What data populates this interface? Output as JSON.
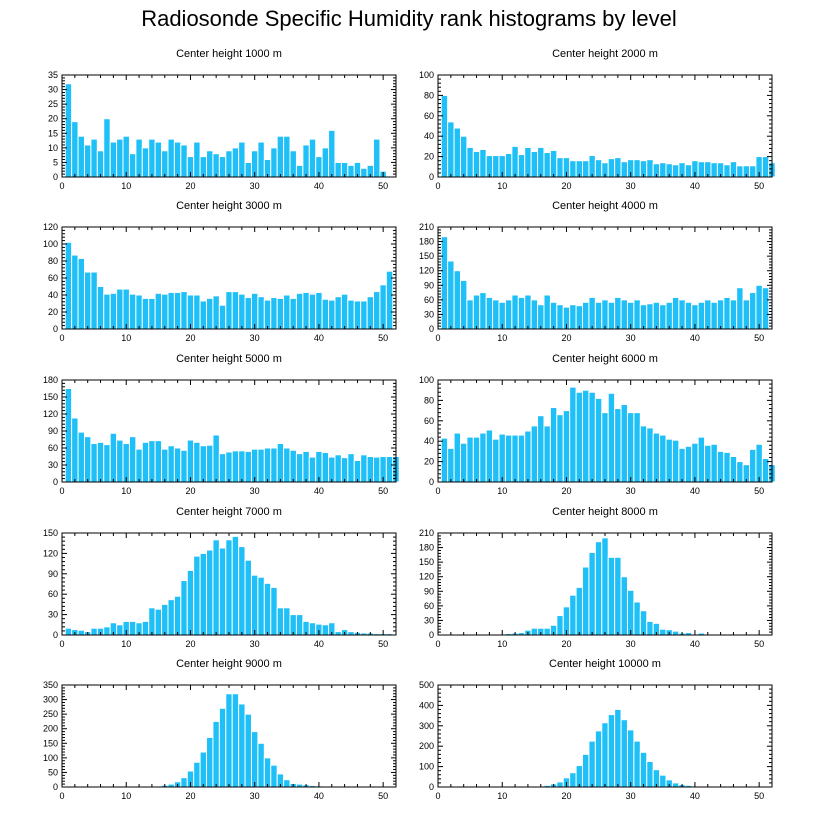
{
  "title": "Radiosonde Specific Humidity rank histograms by level",
  "colors": {
    "bar": "#1ec0f7",
    "bar_edge": "#ffffff",
    "axis": "#000000"
  },
  "chart_data": [
    {
      "type": "bar",
      "title": "Center height 1000 m",
      "xlabel": "",
      "ylabel": "",
      "xlim": [
        0,
        52
      ],
      "xticks": [
        0,
        10,
        20,
        30,
        40,
        50
      ],
      "ylim": [
        0,
        35
      ],
      "yticks": [
        0,
        5,
        10,
        15,
        20,
        25,
        30,
        35
      ],
      "values": [
        32,
        19,
        14,
        11,
        13,
        9,
        20,
        12,
        13,
        14,
        8,
        13,
        10,
        13,
        12,
        9,
        13,
        12,
        11,
        7,
        12,
        7,
        9,
        8,
        7,
        9,
        10,
        12,
        5,
        9,
        12,
        6,
        10,
        14,
        14,
        9,
        4,
        11,
        13,
        7,
        10,
        16,
        5,
        5,
        4,
        5,
        3,
        4,
        13,
        2
      ]
    },
    {
      "type": "bar",
      "title": "Center height 2000 m",
      "xlabel": "",
      "ylabel": "",
      "xlim": [
        0,
        52
      ],
      "xticks": [
        0,
        10,
        20,
        30,
        40,
        50
      ],
      "ylim": [
        0,
        100
      ],
      "yticks": [
        0,
        20,
        40,
        60,
        80,
        100
      ],
      "values": [
        80,
        54,
        48,
        40,
        29,
        25,
        27,
        21,
        21,
        21,
        23,
        30,
        22,
        29,
        25,
        29,
        24,
        26,
        19,
        19,
        16,
        16,
        16,
        21,
        17,
        14,
        18,
        19,
        15,
        17,
        17,
        16,
        17,
        13,
        14,
        13,
        12,
        14,
        12,
        16,
        15,
        15,
        14,
        14,
        12,
        15,
        11,
        11,
        11,
        20,
        20,
        14
      ]
    },
    {
      "type": "bar",
      "title": "Center height 3000 m",
      "xlabel": "",
      "ylabel": "",
      "xlim": [
        0,
        52
      ],
      "xticks": [
        0,
        10,
        20,
        30,
        40,
        50
      ],
      "ylim": [
        0,
        120
      ],
      "yticks": [
        0,
        20,
        40,
        60,
        80,
        100,
        120
      ],
      "values": [
        102,
        87,
        83,
        67,
        67,
        50,
        41,
        42,
        47,
        47,
        41,
        40,
        36,
        36,
        42,
        41,
        43,
        43,
        44,
        40,
        40,
        33,
        36,
        39,
        28,
        44,
        44,
        41,
        37,
        42,
        38,
        34,
        37,
        36,
        40,
        36,
        42,
        43,
        41,
        43,
        35,
        34,
        38,
        41,
        34,
        33,
        33,
        38,
        44,
        52,
        68
      ]
    },
    {
      "type": "bar",
      "title": "Center height 4000 m",
      "xlabel": "",
      "ylabel": "",
      "xlim": [
        0,
        52
      ],
      "xticks": [
        0,
        10,
        20,
        30,
        40,
        50
      ],
      "ylim": [
        0,
        210
      ],
      "yticks": [
        0,
        30,
        60,
        90,
        120,
        150,
        180,
        210
      ],
      "values": [
        190,
        140,
        120,
        100,
        60,
        70,
        75,
        65,
        60,
        55,
        60,
        70,
        65,
        70,
        60,
        50,
        70,
        55,
        50,
        45,
        50,
        48,
        55,
        65,
        55,
        60,
        55,
        65,
        60,
        55,
        60,
        50,
        52,
        55,
        50,
        55,
        65,
        60,
        55,
        50,
        55,
        60,
        55,
        60,
        65,
        60,
        85,
        60,
        75,
        90,
        85
      ]
    },
    {
      "type": "bar",
      "title": "Center height 5000 m",
      "xlabel": "",
      "ylabel": "",
      "xlim": [
        0,
        52
      ],
      "xticks": [
        0,
        10,
        20,
        30,
        40,
        50
      ],
      "ylim": [
        0,
        180
      ],
      "yticks": [
        0,
        30,
        60,
        90,
        120,
        150,
        180
      ],
      "values": [
        165,
        113,
        88,
        80,
        68,
        70,
        66,
        86,
        74,
        68,
        80,
        58,
        70,
        73,
        73,
        58,
        64,
        60,
        56,
        74,
        70,
        64,
        65,
        83,
        50,
        53,
        55,
        55,
        54,
        58,
        58,
        60,
        60,
        68,
        60,
        56,
        50,
        54,
        44,
        54,
        52,
        44,
        48,
        43,
        50,
        38,
        48,
        45,
        44,
        45,
        45,
        45
      ]
    },
    {
      "type": "bar",
      "title": "Center height 6000 m",
      "xlabel": "",
      "ylabel": "",
      "xlim": [
        0,
        52
      ],
      "xticks": [
        0,
        10,
        20,
        30,
        40,
        50
      ],
      "ylim": [
        0,
        100
      ],
      "yticks": [
        0,
        20,
        40,
        60,
        80,
        100
      ],
      "values": [
        43,
        33,
        48,
        38,
        44,
        44,
        48,
        51,
        42,
        47,
        46,
        46,
        46,
        50,
        55,
        65,
        55,
        73,
        66,
        70,
        93,
        88,
        90,
        88,
        82,
        68,
        87,
        72,
        76,
        68,
        68,
        55,
        53,
        48,
        46,
        42,
        41,
        33,
        35,
        38,
        44,
        36,
        37,
        30,
        29,
        25,
        20,
        17,
        32,
        37,
        23,
        17
      ]
    },
    {
      "type": "bar",
      "title": "Center height 7000 m",
      "xlabel": "",
      "ylabel": "",
      "xlim": [
        0,
        52
      ],
      "xticks": [
        0,
        10,
        20,
        30,
        40,
        50
      ],
      "ylim": [
        0,
        150
      ],
      "yticks": [
        0,
        30,
        60,
        90,
        120,
        150
      ],
      "values": [
        10,
        8,
        7,
        5,
        10,
        10,
        12,
        18,
        15,
        20,
        20,
        18,
        20,
        40,
        38,
        45,
        52,
        57,
        80,
        95,
        116,
        120,
        125,
        140,
        128,
        140,
        145,
        130,
        110,
        88,
        85,
        76,
        70,
        40,
        40,
        30,
        30,
        20,
        18,
        16,
        15,
        18,
        5,
        8,
        5,
        4,
        3,
        3,
        2,
        2,
        2,
        1
      ]
    },
    {
      "type": "bar",
      "title": "Center height 8000 m",
      "xlabel": "",
      "ylabel": "",
      "xlim": [
        0,
        52
      ],
      "xticks": [
        0,
        10,
        20,
        30,
        40,
        50
      ],
      "ylim": [
        0,
        210
      ],
      "yticks": [
        0,
        30,
        60,
        90,
        120,
        150,
        180,
        210
      ],
      "values": [
        0,
        0,
        0,
        0,
        0,
        0,
        0,
        0,
        1,
        1,
        3,
        4,
        5,
        10,
        14,
        14,
        14,
        20,
        40,
        58,
        82,
        98,
        140,
        170,
        192,
        200,
        160,
        160,
        120,
        92,
        68,
        50,
        28,
        24,
        12,
        11,
        8,
        4,
        5,
        2,
        4,
        2,
        1,
        1,
        0,
        0,
        0,
        0,
        0,
        0,
        0,
        0
      ]
    },
    {
      "type": "bar",
      "title": "Center height 9000 m",
      "xlabel": "",
      "ylabel": "",
      "xlim": [
        0,
        52
      ],
      "xticks": [
        0,
        10,
        20,
        30,
        40,
        50
      ],
      "ylim": [
        0,
        350
      ],
      "yticks": [
        0,
        50,
        100,
        150,
        200,
        250,
        300,
        350
      ],
      "values": [
        0,
        0,
        0,
        0,
        0,
        0,
        0,
        0,
        0,
        0,
        0,
        0,
        0,
        0,
        2,
        6,
        10,
        18,
        32,
        55,
        85,
        120,
        170,
        225,
        270,
        320,
        320,
        285,
        250,
        190,
        150,
        100,
        75,
        45,
        25,
        12,
        10,
        8,
        5,
        4,
        3,
        2,
        1,
        1,
        0,
        0,
        0,
        0,
        0,
        0,
        0,
        0
      ]
    },
    {
      "type": "bar",
      "title": "Center height 10000 m",
      "xlabel": "",
      "ylabel": "",
      "xlim": [
        0,
        52
      ],
      "xticks": [
        0,
        10,
        20,
        30,
        40,
        50
      ],
      "ylim": [
        0,
        500
      ],
      "yticks": [
        0,
        100,
        200,
        300,
        400,
        500
      ],
      "values": [
        0,
        0,
        0,
        0,
        0,
        0,
        0,
        0,
        0,
        0,
        0,
        0,
        0,
        0,
        0,
        0,
        8,
        15,
        25,
        45,
        70,
        105,
        160,
        225,
        275,
        315,
        355,
        380,
        330,
        280,
        225,
        170,
        125,
        85,
        58,
        35,
        20,
        12,
        8,
        5,
        3,
        2,
        2,
        1,
        0,
        0,
        0,
        0,
        0,
        0,
        0,
        0
      ]
    }
  ]
}
